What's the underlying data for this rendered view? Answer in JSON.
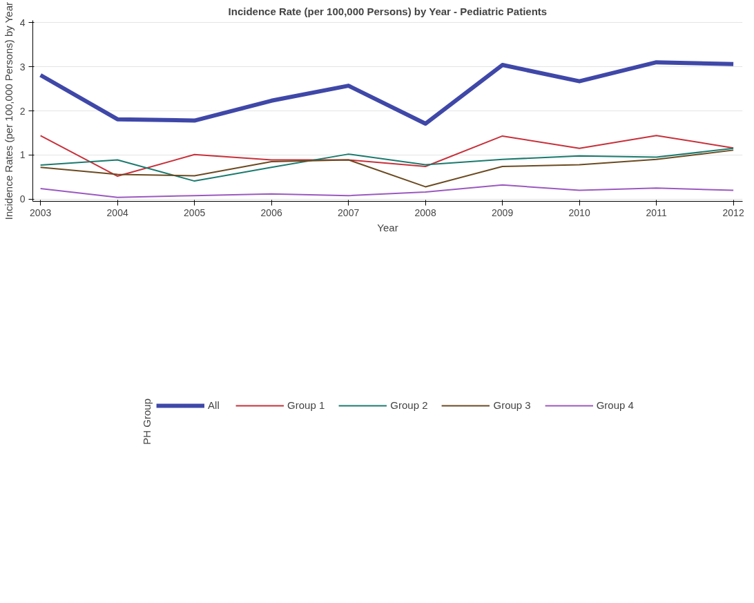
{
  "chart_data": {
    "type": "line",
    "title": "Incidence Rate (per 100,000 Persons) by Year - Pediatric Patients",
    "xlabel": "Year",
    "ylabel": "Incidence Rates (per 100,000 Persons) by Year",
    "legend_title": "PH Group",
    "legend": "bottom",
    "grid": "y",
    "marker": "none",
    "line_style": "solid",
    "x": [
      2003,
      2004,
      2005,
      2006,
      2007,
      2008,
      2009,
      2010,
      2011,
      2012
    ],
    "xlim": [
      2002.9,
      2012.12
    ],
    "xticks": [
      2003,
      2004,
      2005,
      2006,
      2007,
      2008,
      2009,
      2010,
      2011,
      2012
    ],
    "ylim": [
      -0.05,
      4.05
    ],
    "yticks": [
      0,
      1,
      2,
      3,
      4
    ],
    "series": [
      {
        "name": "All",
        "color": "#3f48a8",
        "values": [
          2.81,
          1.81,
          1.78,
          2.23,
          2.57,
          1.71,
          3.04,
          2.67,
          3.1,
          3.06
        ]
      },
      {
        "name": "Group 1",
        "color": "#c8303a",
        "values": [
          1.44,
          0.52,
          1.01,
          0.89,
          0.89,
          0.74,
          1.43,
          1.15,
          1.44,
          1.16
        ]
      },
      {
        "name": "Group 2",
        "color": "#1a7a6e",
        "values": [
          0.77,
          0.89,
          0.41,
          0.72,
          1.02,
          0.78,
          0.9,
          0.98,
          0.95,
          1.15
        ]
      },
      {
        "name": "Group 3",
        "color": "#6b4a20",
        "values": [
          0.72,
          0.56,
          0.53,
          0.85,
          0.89,
          0.28,
          0.74,
          0.78,
          0.9,
          1.11
        ]
      },
      {
        "name": "Group 4",
        "color": "#9b59c0",
        "values": [
          0.24,
          0.04,
          0.08,
          0.12,
          0.08,
          0.16,
          0.32,
          0.2,
          0.25,
          0.2
        ]
      }
    ]
  }
}
